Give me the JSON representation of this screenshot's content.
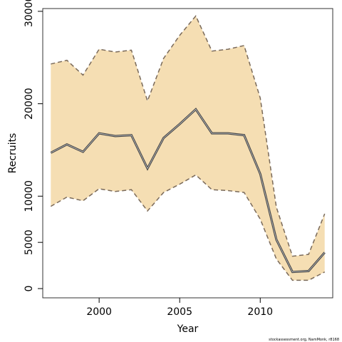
{
  "chart_data": {
    "type": "area",
    "title": "",
    "xlabel": "Year",
    "ylabel": "Recruits",
    "xlim": [
      1996.5,
      2014.5
    ],
    "ylim": [
      -1000,
      30300
    ],
    "x_ticks": [
      2000,
      2005,
      2010
    ],
    "y_ticks": [
      0,
      5000,
      10000,
      20000,
      30000
    ],
    "grid": false,
    "legend": "none",
    "x": [
      1997,
      1998,
      1999,
      2000,
      2001,
      2002,
      2003,
      2004,
      2005,
      2006,
      2007,
      2008,
      2009,
      2010,
      2011,
      2012,
      2013,
      2014
    ],
    "series": [
      {
        "role": "estimate",
        "values": [
          14700,
          15600,
          14800,
          16800,
          16500,
          16600,
          13000,
          16300,
          17800,
          19400,
          16800,
          16800,
          16600,
          12400,
          5300,
          1800,
          1900,
          3900
        ]
      },
      {
        "role": "upper",
        "values": [
          24300,
          24700,
          23100,
          25900,
          25600,
          25800,
          20300,
          24900,
          27400,
          29500,
          25700,
          25900,
          26300,
          20600,
          8800,
          3500,
          3700,
          8100
        ]
      },
      {
        "role": "lower",
        "values": [
          8900,
          9900,
          9500,
          10800,
          10500,
          10700,
          8400,
          10400,
          11300,
          12300,
          10700,
          10600,
          10400,
          7500,
          3200,
          900,
          900,
          1800
        ]
      }
    ],
    "colors": {
      "band_fill": "#f5deb3",
      "estimate_line": "#444444",
      "bound_line": "#7a6a5a"
    }
  },
  "credit": "stockassessment.org, NamMonk, r8168"
}
